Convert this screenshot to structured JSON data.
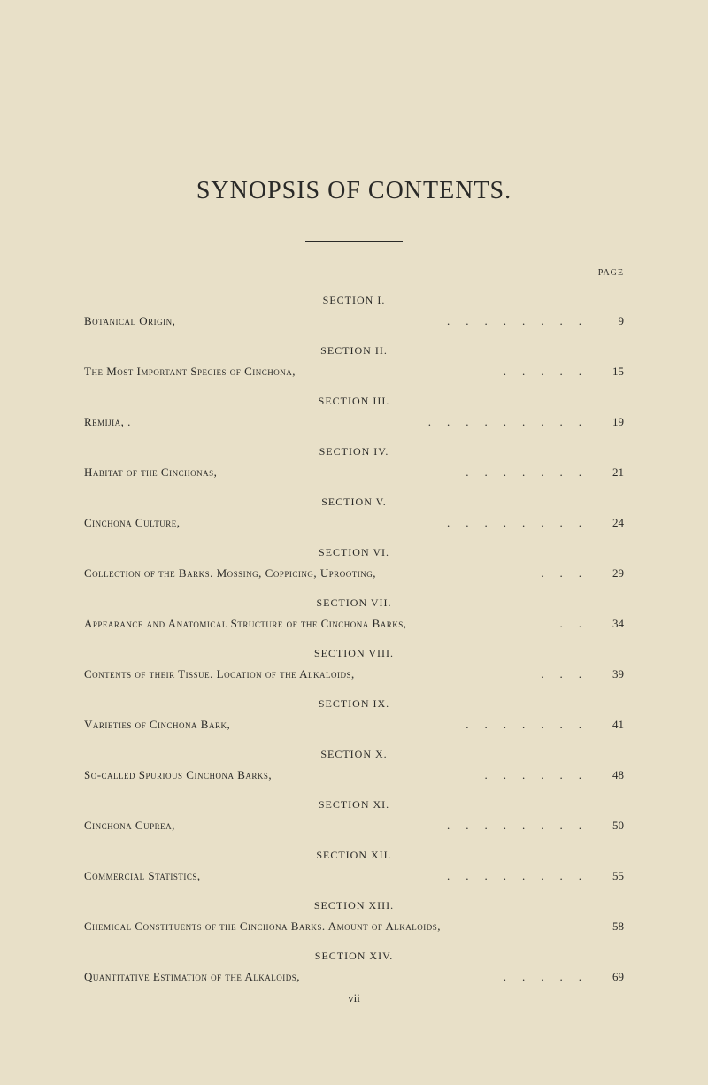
{
  "title": "SYNOPSIS OF CONTENTS.",
  "page_label": "PAGE",
  "footer_page": "vii",
  "colors": {
    "background": "#e8e0c8",
    "text": "#2a2a28"
  },
  "typography": {
    "title_fontsize": 28,
    "section_fontsize": 12,
    "entry_fontsize": 13,
    "page_label_fontsize": 10
  },
  "sections": [
    {
      "header": "SECTION I.",
      "title_sc": "Botanical Origin,",
      "title_normal": "",
      "page": "9"
    },
    {
      "header": "SECTION II.",
      "title_sc": "The Most Important Species of Cinchona,",
      "title_normal": "",
      "page": "15"
    },
    {
      "header": "SECTION III.",
      "title_sc": "Remijia, .",
      "title_normal": "",
      "page": "19"
    },
    {
      "header": "SECTION IV.",
      "title_sc": "Habitat of the Cinchonas,",
      "title_normal": "",
      "page": "21"
    },
    {
      "header": "SECTION V.",
      "title_sc": "Cinchona Culture,",
      "title_normal": "",
      "page": "24"
    },
    {
      "header": "SECTION VI.",
      "title_sc": "Collection of the Barks.  Mossing, Coppicing, Uprooting,",
      "title_normal": "",
      "page": "29"
    },
    {
      "header": "SECTION VII.",
      "title_sc": "Appearance and Anatomical Structure of the Cinchona Barks,",
      "title_normal": "",
      "page": "34"
    },
    {
      "header": "SECTION VIII.",
      "title_sc": "Contents of their Tissue.  Location of the Alkaloids,",
      "title_normal": "",
      "page": "39"
    },
    {
      "header": "SECTION IX.",
      "title_sc": "Varieties of Cinchona Bark,",
      "title_normal": "",
      "page": "41"
    },
    {
      "header": "SECTION X.",
      "title_sc": "So-called Spurious Cinchona Barks,",
      "title_normal": "",
      "page": "48"
    },
    {
      "header": "SECTION XI.",
      "title_sc": "Cinchona Cuprea,",
      "title_normal": "",
      "page": "50"
    },
    {
      "header": "SECTION XII.",
      "title_sc": "Commercial Statistics,",
      "title_normal": "",
      "page": "55"
    },
    {
      "header": "SECTION XIII.",
      "title_sc": "Chemical Constituents of the Cinchona Barks.  Amount of Alkaloids,",
      "title_normal": "",
      "page": "58"
    },
    {
      "header": "SECTION XIV.",
      "title_sc": "Quantitative Estimation of the Alkaloids,",
      "title_normal": "",
      "page": "69"
    }
  ]
}
